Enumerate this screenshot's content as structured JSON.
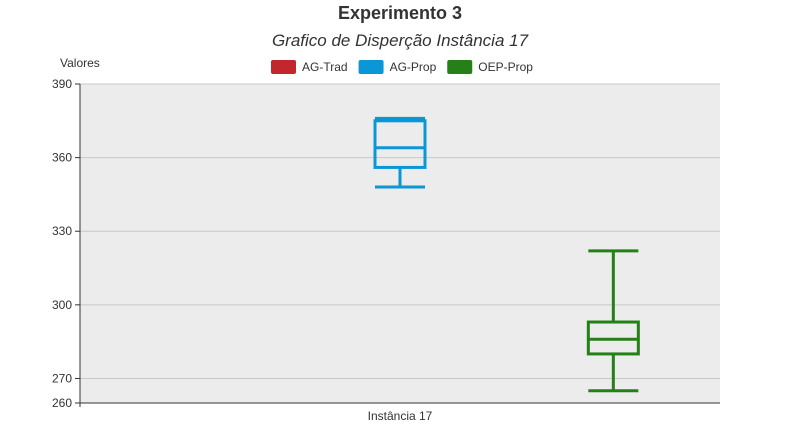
{
  "chart_data": {
    "type": "boxplot",
    "title": "Experimento 3",
    "subtitle": "Grafico de Disperção Instância 17",
    "ylabel": "Valores",
    "xlabel": "",
    "categories": [
      "Instância 17"
    ],
    "ylim": [
      260,
      390
    ],
    "yticks": [
      260,
      270,
      300,
      330,
      360,
      390
    ],
    "grid": true,
    "legend_position": "top-center",
    "background_color": "#ececec",
    "series": [
      {
        "name": "AG-Trad",
        "color": "#c1272d",
        "box": null
      },
      {
        "name": "AG-Prop",
        "color": "#0b96d6",
        "box": {
          "min": 348,
          "q1": 356,
          "median": 364,
          "q3": 375,
          "max": 376
        }
      },
      {
        "name": "OEP-Prop",
        "color": "#258018",
        "box": {
          "min": 265,
          "q1": 280,
          "median": 286,
          "q3": 293,
          "max": 322
        }
      }
    ]
  }
}
